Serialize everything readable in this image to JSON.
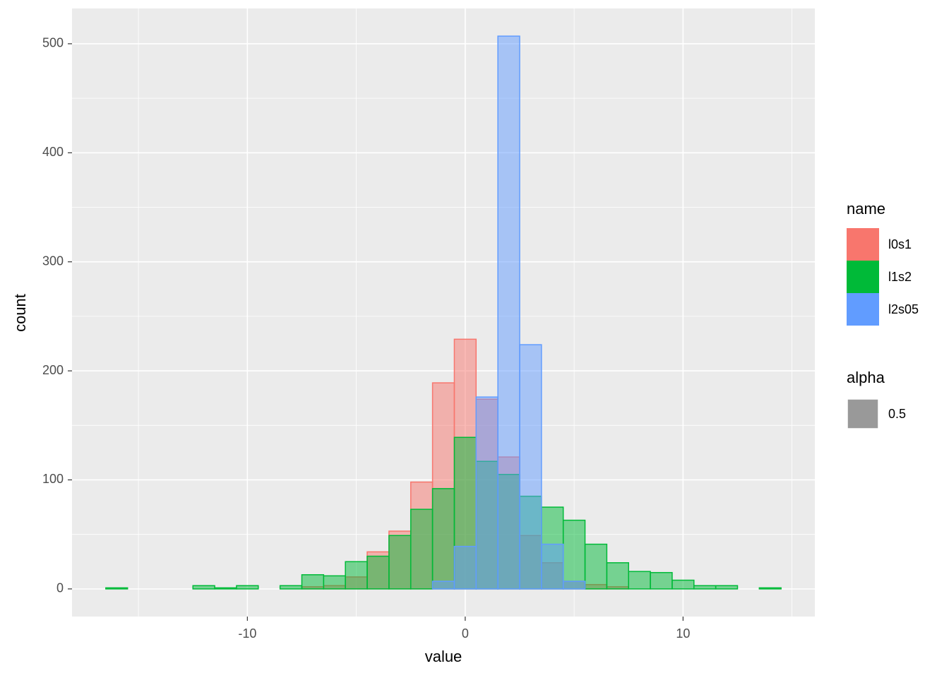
{
  "chart_data": {
    "type": "histogram",
    "xlabel": "value",
    "ylabel": "count",
    "bins": [
      -16.5,
      -15.5,
      -14.5,
      -13.5,
      -12.5,
      -11.5,
      -10.5,
      -9.5,
      -8.5,
      -7.5,
      -6.5,
      -5.5,
      -4.5,
      -3.5,
      -2.5,
      -1.5,
      -0.5,
      0.5,
      1.5,
      2.5,
      3.5,
      4.5,
      5.5,
      6.5,
      7.5,
      8.5,
      9.5,
      10.5,
      11.5,
      12.5,
      13.5,
      14.5
    ],
    "series": [
      {
        "name": "l0s1",
        "color": "#F8766D",
        "values": [
          0,
          0,
          0,
          0,
          0,
          0,
          0,
          0,
          0,
          2,
          3,
          11,
          34,
          53,
          98,
          189,
          229,
          174,
          121,
          49,
          24,
          7,
          4,
          2,
          0,
          0,
          0,
          0,
          0,
          0,
          0
        ]
      },
      {
        "name": "l1s2",
        "color": "#00BA38",
        "values": [
          1,
          0,
          0,
          0,
          3,
          1,
          3,
          0,
          3,
          13,
          12,
          25,
          30,
          49,
          73,
          92,
          139,
          117,
          105,
          85,
          75,
          63,
          41,
          24,
          16,
          15,
          8,
          3,
          3,
          0,
          1
        ]
      },
      {
        "name": "l2s05",
        "color": "#619CFF",
        "values": [
          0,
          0,
          0,
          0,
          0,
          0,
          0,
          0,
          0,
          0,
          0,
          0,
          0,
          0,
          0,
          7,
          39,
          176,
          507,
          224,
          41,
          7,
          0,
          0,
          0,
          0,
          0,
          0,
          0,
          0,
          0
        ]
      }
    ],
    "legend_title": "name",
    "alpha_title": "alpha",
    "alpha": 0.5,
    "xlim": [
      -18.05,
      16.05
    ],
    "xticks": [
      -10,
      0,
      10
    ],
    "xminorticks": [
      -15,
      -5,
      5,
      15
    ],
    "ylim": [
      -25.35,
      532.35
    ],
    "yticks": [
      0,
      100,
      200,
      300,
      400,
      500
    ],
    "yminorticks": [
      50,
      150,
      250,
      350,
      450
    ],
    "grid": true
  }
}
